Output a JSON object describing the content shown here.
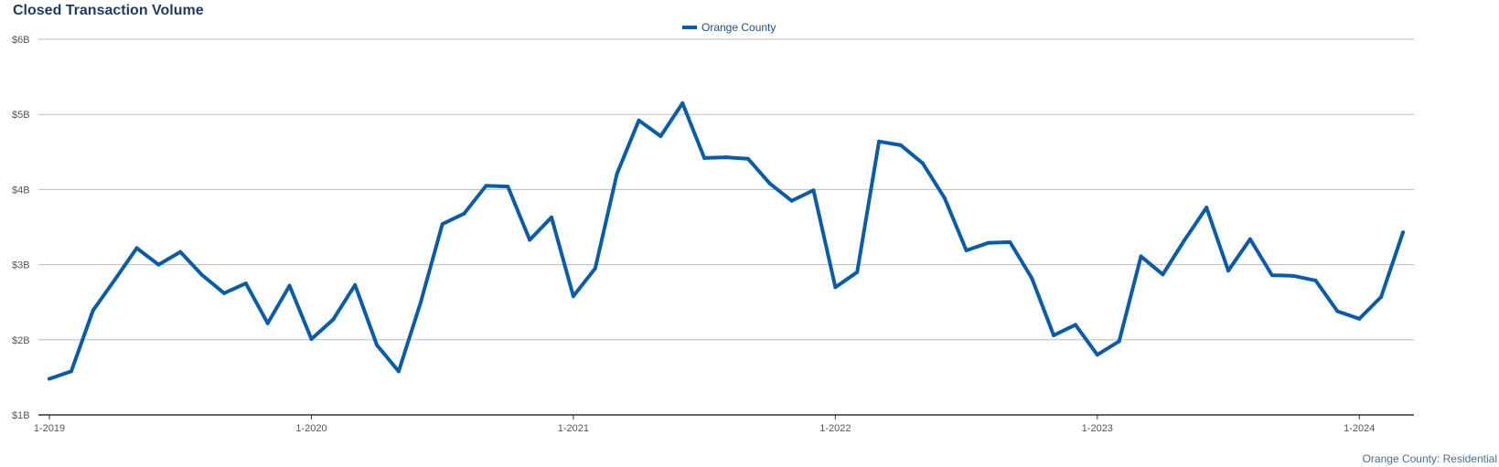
{
  "chart_data": {
    "type": "line",
    "title": "Closed Transaction Volume",
    "footer": "Orange County: Residential",
    "y_unit": "$ billions",
    "ylim": [
      1,
      6
    ],
    "y_ticks": [
      1,
      2,
      3,
      4,
      5,
      6
    ],
    "y_tick_labels": [
      "$1B",
      "$2B",
      "$3B",
      "$4B",
      "$5B",
      "$6B"
    ],
    "x_tick_labels": [
      "1-2019",
      "1-2020",
      "1-2021",
      "1-2022",
      "1-2023",
      "1-2024"
    ],
    "x_tick_dates": [
      "2019-01",
      "2020-01",
      "2021-01",
      "2022-01",
      "2023-01",
      "2024-01"
    ],
    "grid": true,
    "legend_position": "top-center",
    "colors": {
      "line": "#0a5ca8",
      "grid": "#bbbbbb",
      "axis": "#333333"
    },
    "series": [
      {
        "name": "Orange County",
        "x": [
          "2019-01",
          "2019-02",
          "2019-03",
          "2019-04",
          "2019-05",
          "2019-06",
          "2019-07",
          "2019-08",
          "2019-09",
          "2019-10",
          "2019-11",
          "2019-12",
          "2020-01",
          "2020-02",
          "2020-03",
          "2020-04",
          "2020-05",
          "2020-06",
          "2020-07",
          "2020-08",
          "2020-09",
          "2020-10",
          "2020-11",
          "2020-12",
          "2021-01",
          "2021-02",
          "2021-03",
          "2021-04",
          "2021-05",
          "2021-06",
          "2021-07",
          "2021-08",
          "2021-09",
          "2021-10",
          "2021-11",
          "2021-12",
          "2022-01",
          "2022-02",
          "2022-03",
          "2022-04",
          "2022-05",
          "2022-06",
          "2022-07",
          "2022-08",
          "2022-09",
          "2022-10",
          "2022-11",
          "2022-12",
          "2023-01",
          "2023-02",
          "2023-03",
          "2023-04",
          "2023-05",
          "2023-06",
          "2023-07",
          "2023-08",
          "2023-09",
          "2023-10",
          "2023-11",
          "2023-12",
          "2024-01",
          "2024-02",
          "2024-03"
        ],
        "values": [
          1.48,
          1.58,
          2.39,
          2.8,
          3.22,
          3.0,
          3.17,
          2.86,
          2.62,
          2.75,
          2.22,
          2.72,
          2.01,
          2.27,
          2.73,
          1.93,
          1.58,
          2.49,
          3.54,
          3.68,
          4.05,
          4.04,
          3.33,
          3.63,
          2.58,
          2.95,
          4.21,
          4.92,
          4.71,
          5.15,
          4.42,
          4.43,
          4.41,
          4.08,
          3.85,
          3.99,
          2.7,
          2.9,
          4.64,
          4.59,
          4.35,
          3.89,
          3.19,
          3.29,
          3.3,
          2.82,
          2.06,
          2.2,
          1.8,
          1.98,
          3.11,
          2.87,
          3.33,
          3.76,
          2.92,
          3.34,
          2.86,
          2.85,
          2.79,
          2.38,
          2.28,
          2.57,
          3.43
        ]
      }
    ]
  }
}
